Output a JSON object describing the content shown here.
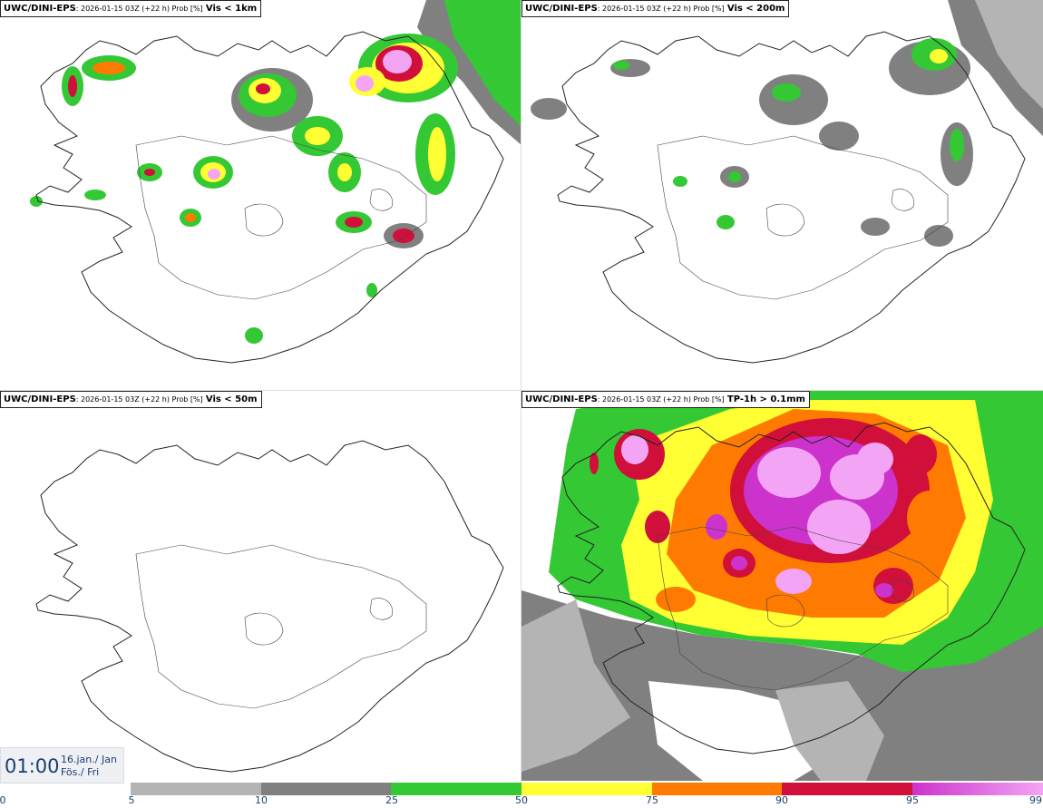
{
  "panels": [
    {
      "model": "UWC/DINI-EPS",
      "meta": ": 2026-01-15 03Z (+22 h) Prob [%]",
      "variable": "Vis < 1km"
    },
    {
      "model": "UWC/DINI-EPS",
      "meta": ": 2026-01-15 03Z (+22 h) Prob [%]",
      "variable": "Vis < 200m"
    },
    {
      "model": "UWC/DINI-EPS",
      "meta": ": 2026-01-15 03Z (+22 h) Prob [%]",
      "variable": "Vis < 50m"
    },
    {
      "model": "UWC/DINI-EPS",
      "meta": ": 2026-01-15 03Z (+22 h) Prob [%]",
      "variable": "TP-1h > 0.1mm"
    }
  ],
  "time": {
    "clock": "01:00",
    "date_line": "16.jan./ Jan",
    "day_line": "Fös./ Fri"
  },
  "legend": {
    "ticks": [
      "0",
      "5",
      "10",
      "25",
      "50",
      "75",
      "90",
      "95",
      "99"
    ],
    "colors": {
      "5-10": "#b4b4b4",
      "10-25": "#808080",
      "25-50": "#34c834",
      "50-75": "#ffff33",
      "75-90": "#ff7a00",
      "90-95": "#d0103a",
      "95-99": "#cc33cc",
      "99+": "#f4a4f4"
    }
  }
}
